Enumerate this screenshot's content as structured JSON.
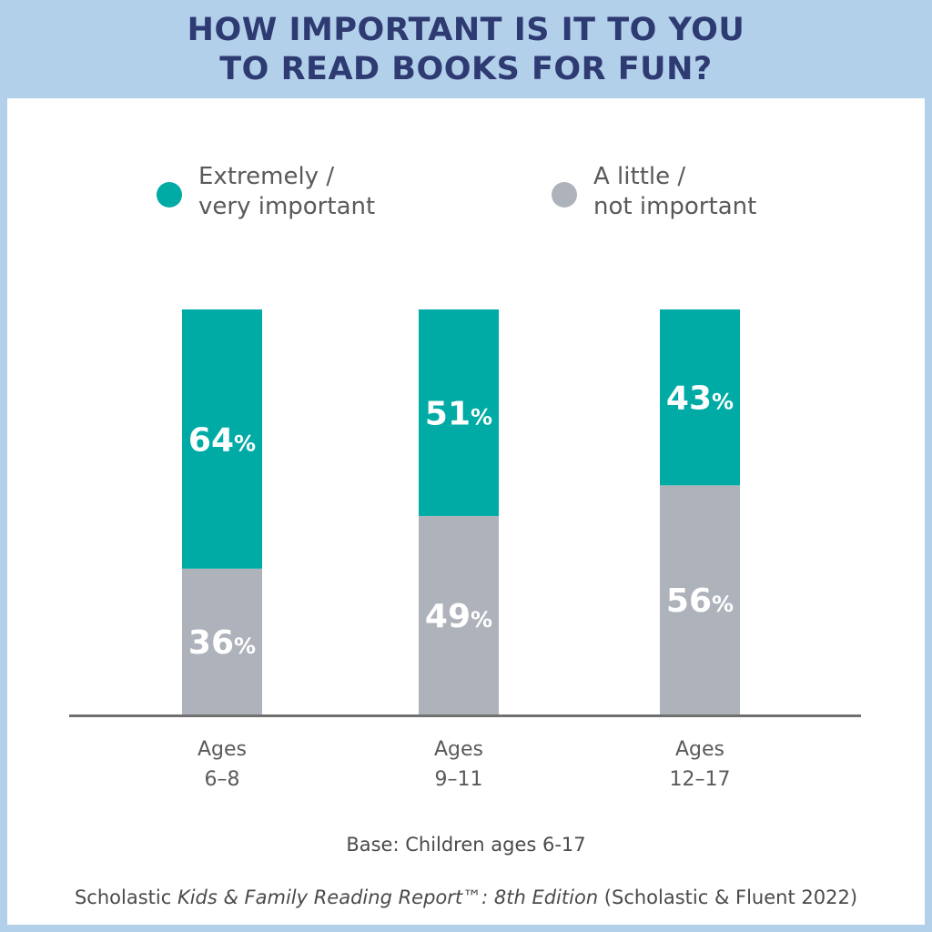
{
  "title": {
    "line1": "HOW IMPORTANT IS IT TO YOU",
    "line2": "TO READ BOOKS FOR FUN?"
  },
  "colors": {
    "header_bg": "#b3d0ea",
    "title_text": "#2e3a72",
    "important": "#00aba6",
    "not_important": "#aeb3bb",
    "axis": "#707070"
  },
  "legend": [
    {
      "line1": "Extremely /",
      "line2": "very important",
      "color": "#00aba6"
    },
    {
      "line1": "A little /",
      "line2": "not important",
      "color": "#aeb3bb"
    }
  ],
  "chart_data": {
    "type": "bar",
    "stacked": true,
    "categories": [
      {
        "line1": "Ages",
        "line2": "6–8"
      },
      {
        "line1": "Ages",
        "line2": "9–11"
      },
      {
        "line1": "Ages",
        "line2": "12–17"
      }
    ],
    "series": [
      {
        "name": "Extremely / very important",
        "values": [
          64,
          51,
          43
        ],
        "color": "#00aba6"
      },
      {
        "name": "A little / not important",
        "values": [
          36,
          49,
          56
        ],
        "color": "#aeb3bb"
      }
    ],
    "value_suffix": "%",
    "ylim": [
      0,
      100
    ],
    "grid": false,
    "legend_position": "top"
  },
  "footer": {
    "base": "Base: Children ages 6-17",
    "source_prefix": "Scholastic ",
    "source_italic": "Kids & Family Reading Report™: 8th Edition",
    "source_suffix": " (Scholastic & Fluent 2022)"
  }
}
